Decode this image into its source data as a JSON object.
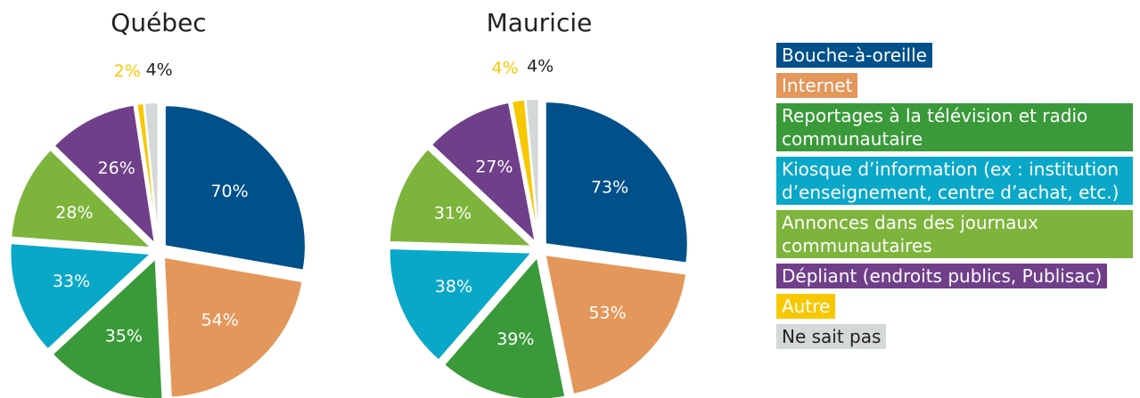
{
  "chart_data": [
    {
      "type": "pie",
      "title": "Québec",
      "categories": [
        "Bouche-à-oreille",
        "Internet",
        "Reportages à la télévision et radio communautaire",
        "Kiosque d’information (ex : institution d’enseignement, centre d’achat, etc.)",
        "Annonces dans des journaux communautaires",
        "Dépliant (endroits publics, Publisac)",
        "Autre",
        "Ne sait pas"
      ],
      "values": [
        70,
        54,
        35,
        33,
        28,
        26,
        2,
        4
      ],
      "value_labels": [
        "70%",
        "54%",
        "35%",
        "33%",
        "28%",
        "26%",
        "2%",
        "4%"
      ],
      "colors": [
        "#00508a",
        "#e3975a",
        "#3a9a3a",
        "#0aa8c8",
        "#7db43c",
        "#6f3f8a",
        "#f7c800",
        "#d5d8d8"
      ]
    },
    {
      "type": "pie",
      "title": "Mauricie",
      "categories": [
        "Bouche-à-oreille",
        "Internet",
        "Reportages à la télévision et radio communautaire",
        "Kiosque d’information (ex : institution d’enseignement, centre d’achat, etc.)",
        "Annonces dans des journaux communautaires",
        "Dépliant (endroits publics, Publisac)",
        "Autre",
        "Ne sait pas"
      ],
      "values": [
        73,
        53,
        39,
        38,
        31,
        27,
        4,
        4
      ],
      "value_labels": [
        "73%",
        "53%",
        "39%",
        "38%",
        "31%",
        "27%",
        "4%",
        "4%"
      ],
      "colors": [
        "#00508a",
        "#e3975a",
        "#3a9a3a",
        "#0aa8c8",
        "#7db43c",
        "#6f3f8a",
        "#f7c800",
        "#d5d8d8"
      ]
    }
  ]
}
